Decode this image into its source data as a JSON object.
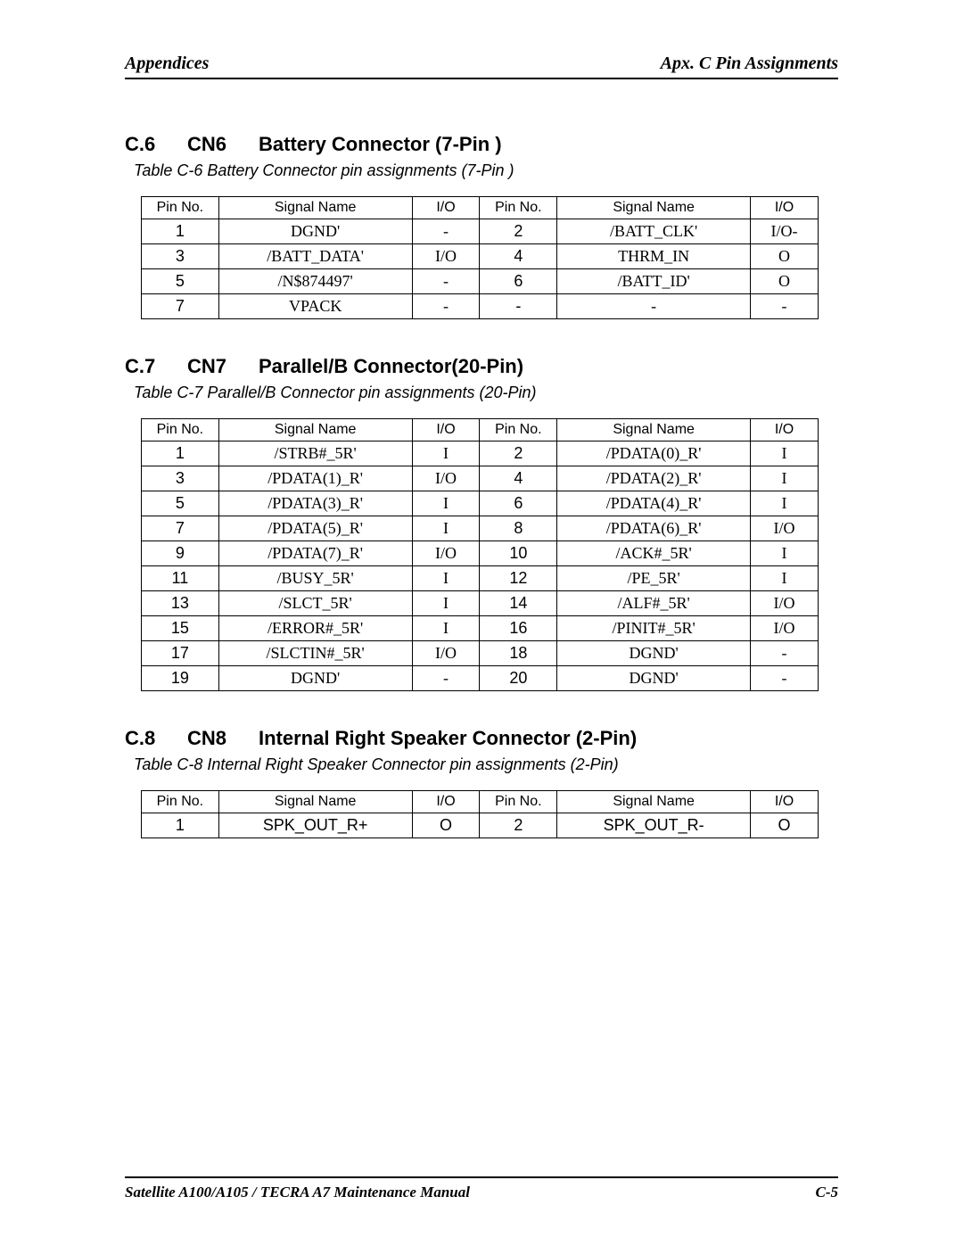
{
  "header": {
    "left": "Appendices",
    "right": "Apx. C  Pin Assignments"
  },
  "footer": {
    "left": "Satellite A100/A105 / TECRA A7  Maintenance Manual",
    "right": "C-5"
  },
  "table_headers": [
    "Pin No.",
    "Signal Name",
    "I/O",
    "Pin No.",
    "Signal Name",
    "I/O"
  ],
  "sections": [
    {
      "num": "C.6",
      "cn": "CN6",
      "title": "Battery Connector (7-Pin )",
      "caption": "Table C-6   Battery Connector pin assignments (7-Pin )",
      "rows": [
        [
          "1",
          "DGND'",
          "-",
          "2",
          "/BATT_CLK'",
          "I/O-"
        ],
        [
          "3",
          "/BATT_DATA'",
          "I/O",
          "4",
          "THRM_IN",
          "O"
        ],
        [
          "5",
          "/N$874497'",
          "-",
          "6",
          "/BATT_ID'",
          "O"
        ],
        [
          "7",
          "VPACK",
          "-",
          "-",
          "-",
          "-"
        ]
      ]
    },
    {
      "num": "C.7",
      "cn": "CN7",
      "title": "Parallel/B Connector(20-Pin)",
      "caption": "Table C-7  Parallel/B  Connector pin assignments (20-Pin)",
      "rows": [
        [
          "1",
          "/STRB#_5R'",
          "I",
          "2",
          "/PDATA(0)_R'",
          "I"
        ],
        [
          "3",
          "/PDATA(1)_R'",
          "I/O",
          "4",
          "/PDATA(2)_R'",
          "I"
        ],
        [
          "5",
          "/PDATA(3)_R'",
          "I",
          "6",
          "/PDATA(4)_R'",
          "I"
        ],
        [
          "7",
          "/PDATA(5)_R'",
          "I",
          "8",
          "/PDATA(6)_R'",
          "I/O"
        ],
        [
          "9",
          "/PDATA(7)_R'",
          "I/O",
          "10",
          "/ACK#_5R'",
          "I"
        ],
        [
          "11",
          "/BUSY_5R'",
          "I",
          "12",
          "/PE_5R'",
          "I"
        ],
        [
          "13",
          "/SLCT_5R'",
          "I",
          "14",
          "/ALF#_5R'",
          "I/O"
        ],
        [
          "15",
          "/ERROR#_5R'",
          "I",
          "16",
          "/PINIT#_5R'",
          "I/O"
        ],
        [
          "17",
          "/SLCTIN#_5R'",
          "I/O",
          "18",
          "DGND'",
          "-"
        ],
        [
          "19",
          "DGND'",
          "-",
          "20",
          "DGND'",
          "-"
        ]
      ]
    },
    {
      "num": "C.8",
      "cn": "CN8",
      "title": "Internal Right Speaker Connector (2-Pin)",
      "caption": "Table C-8  Internal Right Speaker Connector  pin assignments (2-Pin)",
      "rows": [
        [
          "1",
          "SPK_OUT_R+",
          "O",
          "2",
          "SPK_OUT_R-",
          "O"
        ]
      ],
      "row_font": "arial"
    }
  ]
}
